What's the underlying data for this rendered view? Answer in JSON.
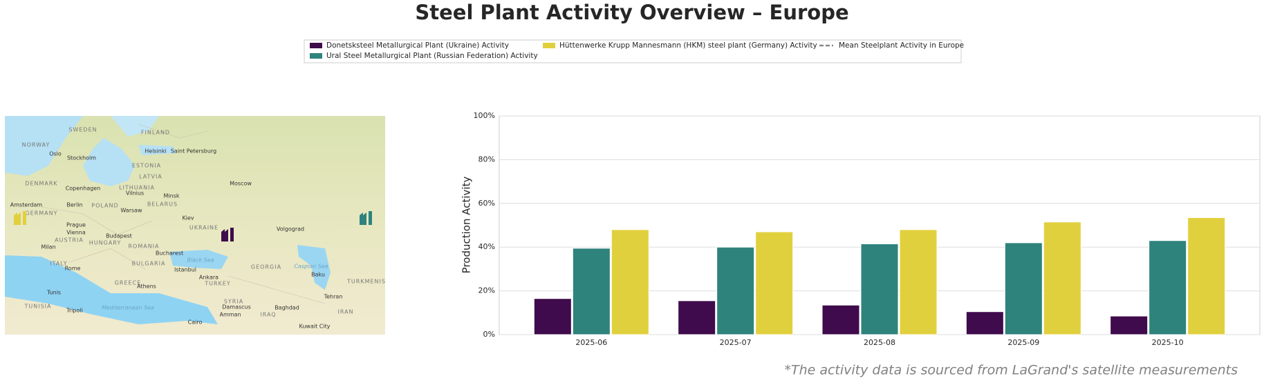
{
  "chart_data": {
    "type": "bar",
    "title": "Steel Plant Activity Overview – Europe",
    "y_label": "Production Activity",
    "categories": [
      "2025-06",
      "2025-07",
      "2025-08",
      "2025-09",
      "2025-10"
    ],
    "series": [
      {
        "name": "Donetsksteel Metallurgical Plant (Ukraine) Activity",
        "color": "#3f0b4c",
        "values": [
          16.5,
          15.5,
          13.5,
          10.5,
          8.5
        ]
      },
      {
        "name": "Ural Steel Metallurgical Plant (Russian Federation) Activity",
        "color": "#2e837c",
        "values": [
          39.5,
          40,
          41.5,
          42,
          43
        ]
      },
      {
        "name": "Hüttenwerke Krupp Mannesmann (HKM) steel plant (Germany) Activity",
        "color": "#e1d03e",
        "values": [
          48,
          47,
          48,
          51.5,
          53.5
        ]
      }
    ],
    "reference_lines": [
      {
        "name": "Mean Steelplant Activity in Europe",
        "color": "#888888",
        "dashed": true
      }
    ],
    "ylim": [
      0,
      100
    ],
    "yticks": [
      {
        "value": 0,
        "label": "0%"
      },
      {
        "value": 20,
        "label": "20%"
      },
      {
        "value": 40,
        "label": "40%"
      },
      {
        "value": 60,
        "label": "60%"
      },
      {
        "value": 80,
        "label": "80%"
      },
      {
        "value": 100,
        "label": "100%"
      }
    ],
    "grid": true,
    "footnote": "*The activity data is sourced from LaGrand's satellite measurements"
  },
  "map": {
    "labels": [
      "SWEDEN",
      "FINLAND",
      "NORWAY",
      "Oslo",
      "Stockholm",
      "Helsinki",
      "Saint Petersburg",
      "ESTONIA",
      "LATVIA",
      "DENMARK",
      "Copenhagen",
      "LITHUANIA",
      "Vilnius",
      "Moscow",
      "Minsk",
      "BELARUS",
      "Amsterdam",
      "Berlin",
      "POLAND",
      "Warsaw",
      "GERMANY",
      "Kiev",
      "UKRAINE",
      "Prague",
      "Volgograd",
      "Vienna",
      "Budapest",
      "AUSTRIA",
      "HUNGARY",
      "ROMANIA",
      "Milan",
      "Bucharest",
      "Black Sea",
      "ITALY",
      "Rome",
      "BULGARIA",
      "Istanbul",
      "GEORGIA",
      "Caspian Sea",
      "Baku",
      "Ankara",
      "GREECE",
      "Athens",
      "TURKEY",
      "TURKMENIS",
      "Tunis",
      "Tehran",
      "SYRIA",
      "TUNISIA",
      "Tripoli",
      "Damascus",
      "Amman",
      "Baghdad",
      "IRAQ",
      "IRAN",
      "Mediterranean Sea",
      "Cairo",
      "Kuwait City"
    ]
  }
}
